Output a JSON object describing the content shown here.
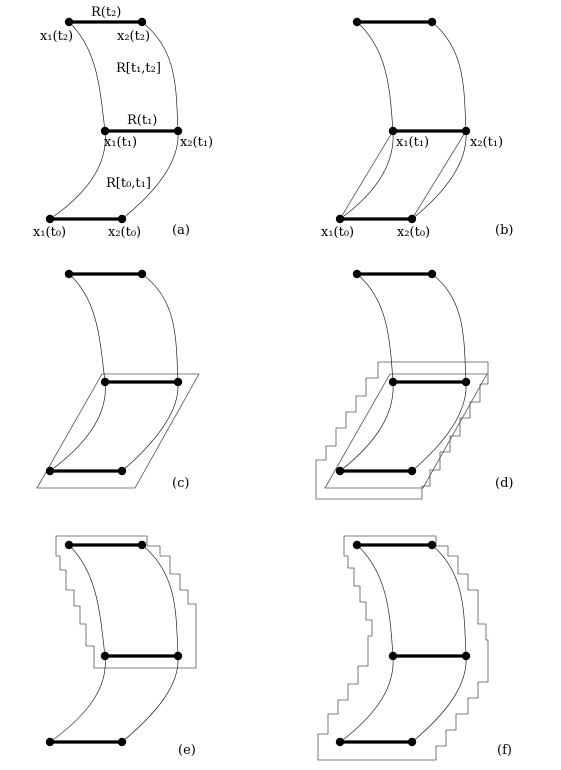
{
  "panels": [
    {
      "id": "a",
      "label": "(a)"
    },
    {
      "id": "b",
      "label": "(b)"
    },
    {
      "id": "c",
      "label": "(c)"
    },
    {
      "id": "d",
      "label": "(d)"
    },
    {
      "id": "e",
      "label": "(e)"
    },
    {
      "id": "f",
      "label": "(f)"
    }
  ],
  "labels": {
    "R_t2": "R(t₂)",
    "R_t1": "R(t₁)",
    "R_t1_t2": "R[t₁,t₂]",
    "R_t0_t1": "R[t₀,t₁]",
    "x1_t2": "x₁(t₂)",
    "x2_t2": "x₂(t₂)",
    "x1_t1": "x₁(t₁)",
    "x2_t1": "x₂(t₁)",
    "x1_t0": "x₁(t₀)",
    "x2_t0": "x₂(t₀)"
  }
}
